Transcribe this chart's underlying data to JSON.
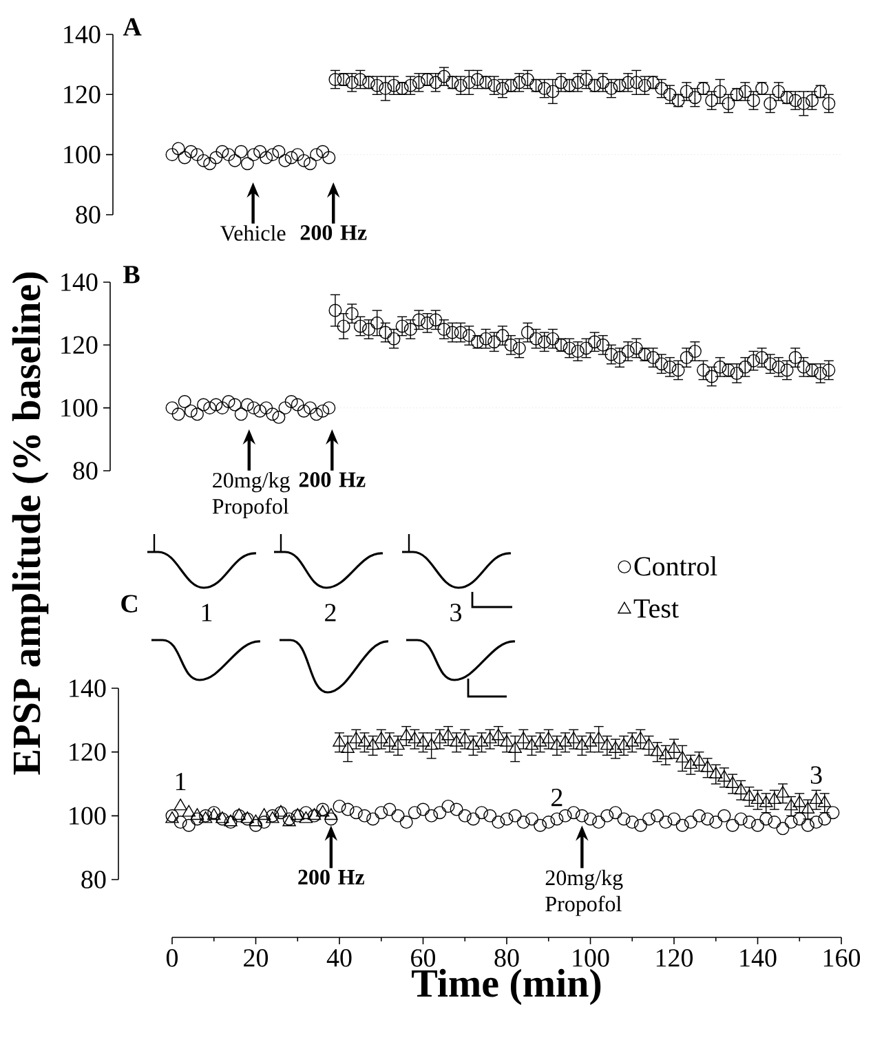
{
  "chart_data": [
    {
      "type": "scatter",
      "title": "A",
      "xlim": [
        0,
        160
      ],
      "ylim": [
        80,
        140
      ],
      "yticks": [
        80,
        100,
        120,
        140
      ],
      "tick_labels": "y",
      "marker": "circle",
      "ref_lines": [
        {
          "axis": "y",
          "value": 100,
          "color": "#c8c8c8",
          "line_style": "dotted"
        }
      ],
      "annotations": [
        "Vehicle",
        "**200 Hz**"
      ],
      "series": [
        {
          "color": "#000000",
          "x": [
            0,
            1.5,
            3,
            4.5,
            6,
            7.5,
            9,
            10.5,
            12,
            13.5,
            15,
            16.5,
            18,
            19.5,
            21,
            22.5,
            24,
            25.5,
            27,
            28.5,
            30,
            31.5,
            33,
            34.5,
            36,
            37.5,
            39,
            41,
            43,
            45,
            47,
            49,
            51,
            53,
            55,
            57,
            59,
            61,
            63,
            65,
            67,
            69,
            71,
            73,
            75,
            77,
            79,
            81,
            83,
            85,
            87,
            89,
            91,
            93,
            95,
            97,
            99,
            101,
            103,
            105,
            107,
            109,
            111,
            113,
            115,
            117,
            119,
            121,
            123,
            125,
            127,
            129,
            131,
            133,
            135,
            137,
            139,
            141,
            143,
            145,
            147,
            149,
            151,
            153,
            155,
            157
          ],
          "values": [
            100,
            102,
            99,
            101,
            100,
            98,
            97,
            99,
            101,
            100,
            98,
            101,
            97,
            100,
            101,
            99,
            100,
            101,
            98,
            99,
            100,
            98,
            97,
            100,
            101,
            99,
            125,
            125,
            124,
            125,
            124,
            123,
            122,
            123,
            122,
            123,
            124,
            125,
            124,
            126,
            124,
            123,
            124,
            125,
            124,
            123,
            122,
            123,
            124,
            125,
            123,
            122,
            121,
            124,
            123,
            124,
            125,
            123,
            124,
            122,
            123,
            124,
            124,
            123,
            124,
            122,
            120,
            118,
            121,
            119,
            122,
            118,
            121,
            117,
            120,
            121,
            118,
            122,
            117,
            121,
            119,
            118,
            117,
            118,
            121,
            117
          ],
          "errors": [
            null,
            null,
            null,
            null,
            null,
            null,
            null,
            null,
            null,
            null,
            null,
            null,
            null,
            null,
            null,
            null,
            null,
            null,
            null,
            null,
            null,
            null,
            null,
            null,
            null,
            null,
            3,
            2,
            3,
            3,
            2,
            3,
            4,
            3,
            2,
            3,
            3,
            2,
            3,
            3,
            2,
            3,
            4,
            3,
            2,
            3,
            3,
            2,
            3,
            3,
            2,
            3,
            4,
            3,
            2,
            3,
            3,
            2,
            3,
            3,
            2,
            3,
            4,
            3,
            2,
            3,
            3,
            2,
            3,
            3,
            2,
            3,
            4,
            3,
            2,
            3,
            3,
            2,
            3,
            3,
            2,
            3,
            4,
            3,
            2,
            3
          ]
        }
      ]
    },
    {
      "type": "scatter",
      "title": "B",
      "ylabel": "EPSP amplitude (% baseline)",
      "xlim": [
        0,
        160
      ],
      "ylim": [
        80,
        140
      ],
      "yticks": [
        80,
        100,
        120,
        140
      ],
      "tick_labels": "y",
      "marker": "circle",
      "ref_lines": [
        {
          "axis": "y",
          "value": 100,
          "color": "#c8c8c8",
          "line_style": "dotted"
        }
      ],
      "annotations": [
        "20mg/kg Propofol",
        "**200 Hz**"
      ],
      "series": [
        {
          "color": "#000000",
          "x": [
            0,
            1.5,
            3,
            4.5,
            6,
            7.5,
            9,
            10.5,
            12,
            13.5,
            15,
            16.5,
            18,
            19.5,
            21,
            22.5,
            24,
            25.5,
            27,
            28.5,
            30,
            31.5,
            33,
            34.5,
            36,
            37.5,
            39,
            41,
            43,
            45,
            47,
            49,
            51,
            53,
            55,
            57,
            59,
            61,
            63,
            65,
            67,
            69,
            71,
            73,
            75,
            77,
            79,
            81,
            83,
            85,
            87,
            89,
            91,
            93,
            95,
            97,
            99,
            101,
            103,
            105,
            107,
            109,
            111,
            113,
            115,
            117,
            119,
            121,
            123,
            125,
            127,
            129,
            131,
            133,
            135,
            137,
            139,
            141,
            143,
            145,
            147,
            149,
            151,
            153,
            155,
            157
          ],
          "values": [
            100,
            98,
            102,
            99,
            98,
            101,
            100,
            101,
            100,
            102,
            101,
            98,
            101,
            100,
            99,
            100,
            98,
            97,
            100,
            102,
            101,
            99,
            100,
            98,
            99,
            100,
            131,
            126,
            130,
            126,
            125,
            127,
            124,
            122,
            126,
            125,
            128,
            127,
            128,
            125,
            124,
            124,
            123,
            121,
            122,
            121,
            123,
            120,
            119,
            124,
            122,
            121,
            122,
            120,
            119,
            118,
            119,
            121,
            120,
            117,
            116,
            118,
            119,
            117,
            116,
            114,
            113,
            112,
            116,
            118,
            112,
            110,
            113,
            112,
            111,
            113,
            115,
            116,
            114,
            113,
            112,
            116,
            113,
            112,
            111,
            112
          ],
          "errors": [
            null,
            null,
            null,
            null,
            null,
            null,
            null,
            null,
            null,
            null,
            null,
            null,
            null,
            null,
            null,
            null,
            null,
            null,
            null,
            null,
            null,
            null,
            null,
            null,
            null,
            null,
            5,
            4,
            3,
            3,
            3,
            4,
            3,
            3,
            3,
            3,
            3,
            3,
            3,
            3,
            3,
            3,
            3,
            2,
            3,
            3,
            3,
            3,
            3,
            3,
            3,
            3,
            3,
            2,
            3,
            3,
            3,
            3,
            3,
            3,
            3,
            3,
            3,
            2,
            3,
            3,
            3,
            3,
            3,
            3,
            3,
            3,
            3,
            2,
            3,
            3,
            3,
            3,
            3,
            3,
            3,
            3,
            3,
            2,
            3,
            3
          ]
        }
      ]
    },
    {
      "type": "scatter",
      "title": "C",
      "xlabel": "Time (min)",
      "xlim": [
        0,
        160
      ],
      "ylim": [
        80,
        140
      ],
      "xticks": [
        0,
        20,
        40,
        60,
        80,
        100,
        120,
        140,
        160
      ],
      "yticks": [
        80,
        100,
        120,
        140
      ],
      "legend": "top right",
      "ref_lines": [
        {
          "axis": "y",
          "value": 100,
          "color": "#c8c8c8",
          "line_style": "dotted"
        }
      ],
      "annotations": [
        {
          "text": "**200 Hz**",
          "x": 38,
          "y": 100
        },
        {
          "text": "20mg/kg Propofol",
          "x": 98,
          "y": 100
        },
        {
          "text": "1",
          "x": 2,
          "y": 103
        },
        {
          "text": "2",
          "x": 92,
          "y": 98
        },
        {
          "text": "3",
          "x": 154,
          "y": 105
        },
        "1",
        "2",
        "3"
      ],
      "series": [
        {
          "name": "Control",
          "color": "#000000",
          "marker": "circle",
          "x": [
            0,
            2,
            4,
            6,
            8,
            10,
            12,
            14,
            16,
            18,
            20,
            22,
            24,
            26,
            28,
            30,
            32,
            34,
            36,
            38,
            40,
            42,
            44,
            46,
            48,
            50,
            52,
            54,
            56,
            58,
            60,
            62,
            64,
            66,
            68,
            70,
            72,
            74,
            76,
            78,
            80,
            82,
            84,
            86,
            88,
            90,
            92,
            94,
            96,
            98,
            100,
            102,
            104,
            106,
            108,
            110,
            112,
            114,
            116,
            118,
            120,
            122,
            124,
            126,
            128,
            130,
            132,
            134,
            136,
            138,
            140,
            142,
            144,
            146,
            148,
            150,
            152,
            154,
            156,
            158
          ],
          "values": [
            100,
            98,
            97,
            99,
            100,
            101,
            99,
            98,
            100,
            99,
            97,
            98,
            100,
            101,
            99,
            100,
            101,
            100,
            102,
            99,
            103,
            102,
            101,
            100,
            99,
            101,
            102,
            100,
            98,
            101,
            102,
            100,
            101,
            103,
            102,
            100,
            99,
            101,
            100,
            98,
            99,
            100,
            98,
            99,
            97,
            98,
            99,
            100,
            101,
            100,
            99,
            98,
            100,
            101,
            99,
            98,
            97,
            99,
            100,
            98,
            99,
            97,
            98,
            100,
            99,
            98,
            100,
            97,
            99,
            98,
            97,
            99,
            98,
            96,
            98,
            99,
            97,
            98,
            99,
            101
          ]
        },
        {
          "name": "Test",
          "color": "#000000",
          "marker": "triangle",
          "x": [
            0,
            2,
            4,
            6,
            8,
            10,
            12,
            14,
            16,
            18,
            20,
            22,
            24,
            26,
            28,
            30,
            32,
            34,
            36,
            38,
            40,
            42,
            44,
            46,
            48,
            50,
            52,
            54,
            56,
            58,
            60,
            62,
            64,
            66,
            68,
            70,
            72,
            74,
            76,
            78,
            80,
            82,
            84,
            86,
            88,
            90,
            92,
            94,
            96,
            98,
            100,
            102,
            104,
            106,
            108,
            110,
            112,
            114,
            116,
            118,
            120,
            122,
            124,
            126,
            128,
            130,
            132,
            134,
            136,
            138,
            140,
            142,
            144,
            146,
            148,
            150,
            152,
            154,
            156
          ],
          "values": [
            99,
            103,
            101,
            100,
            99,
            100,
            99,
            98,
            100,
            99,
            98,
            100,
            99,
            101,
            98,
            100,
            99,
            100,
            101,
            100,
            123,
            121,
            124,
            123,
            122,
            124,
            123,
            122,
            125,
            124,
            123,
            122,
            124,
            125,
            123,
            124,
            122,
            123,
            124,
            125,
            123,
            121,
            124,
            122,
            123,
            124,
            122,
            123,
            124,
            122,
            123,
            124,
            122,
            121,
            122,
            123,
            124,
            122,
            120,
            119,
            121,
            118,
            116,
            117,
            115,
            113,
            112,
            110,
            108,
            106,
            105,
            104,
            105,
            107,
            103,
            104,
            102,
            105,
            104
          ],
          "errors": [
            null,
            null,
            null,
            null,
            null,
            null,
            null,
            null,
            null,
            null,
            null,
            null,
            null,
            null,
            null,
            null,
            null,
            null,
            null,
            null,
            3,
            4,
            3,
            3,
            3,
            3,
            3,
            3,
            3,
            3,
            3,
            4,
            3,
            3,
            3,
            3,
            3,
            3,
            3,
            3,
            3,
            4,
            3,
            3,
            3,
            3,
            3,
            3,
            3,
            3,
            3,
            4,
            3,
            3,
            3,
            3,
            3,
            3,
            3,
            3,
            3,
            4,
            3,
            3,
            3,
            3,
            3,
            3,
            3,
            3,
            3,
            3,
            3,
            3,
            3,
            3,
            3,
            3,
            3
          ]
        }
      ]
    }
  ]
}
